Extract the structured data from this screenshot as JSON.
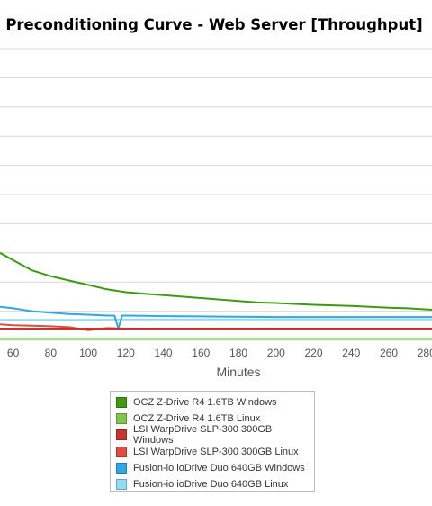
{
  "chart_data": {
    "type": "line",
    "title": "Preconditioning Curve - Web Server [Throughput]",
    "xlabel": "Minutes",
    "ylabel": "",
    "xlim": [
      53,
      283
    ],
    "ylim": [
      0,
      10
    ],
    "x_ticks": [
      "60",
      "80",
      "100",
      "120",
      "140",
      "160",
      "180",
      "200",
      "220",
      "240",
      "260",
      "280"
    ],
    "grid": true,
    "legend_position": "bottom",
    "series": [
      {
        "name": "OCZ Z-Drive R4 1.6TB Windows",
        "color": "#3d9b10",
        "x": [
          53,
          60,
          70,
          80,
          90,
          100,
          110,
          120,
          130,
          140,
          150,
          160,
          170,
          180,
          190,
          200,
          210,
          220,
          230,
          240,
          250,
          260,
          270,
          283
        ],
        "y": [
          3.0,
          2.75,
          2.4,
          2.2,
          2.05,
          1.9,
          1.75,
          1.65,
          1.6,
          1.55,
          1.5,
          1.45,
          1.4,
          1.35,
          1.3,
          1.28,
          1.25,
          1.22,
          1.2,
          1.18,
          1.15,
          1.12,
          1.1,
          1.05
        ]
      },
      {
        "name": "OCZ Z-Drive R4 1.6TB Linux",
        "color": "#7ec74a",
        "x": [
          53,
          283
        ],
        "y": [
          0.05,
          0.05
        ]
      },
      {
        "name": "LSI WarpDrive SLP-300 300GB Windows",
        "color": "#c8342a",
        "x": [
          53,
          283
        ],
        "y": [
          0.4,
          0.4
        ]
      },
      {
        "name": "LSI WarpDrive SLP-300 300GB Linux",
        "color": "#e24b3f",
        "x": [
          53,
          60,
          70,
          80,
          90,
          100,
          110,
          120,
          140,
          160,
          180,
          200,
          220,
          240,
          260,
          283
        ],
        "y": [
          0.55,
          0.52,
          0.5,
          0.48,
          0.45,
          0.35,
          0.42,
          0.4,
          0.4,
          0.4,
          0.4,
          0.4,
          0.4,
          0.4,
          0.4,
          0.4
        ]
      },
      {
        "name": "Fusion-io ioDrive Duo 640GB Windows",
        "color": "#2ea8e6",
        "x": [
          53,
          60,
          70,
          80,
          90,
          100,
          110,
          114,
          116,
          118,
          120,
          130,
          140,
          160,
          180,
          200,
          220,
          240,
          260,
          283
        ],
        "y": [
          1.15,
          1.1,
          1.0,
          0.95,
          0.9,
          0.88,
          0.85,
          0.85,
          0.4,
          0.85,
          0.85,
          0.84,
          0.83,
          0.82,
          0.81,
          0.8,
          0.8,
          0.8,
          0.8,
          0.8
        ]
      },
      {
        "name": "Fusion-io ioDrive Duo 640GB Linux",
        "color": "#8fdcf5",
        "x": [
          53,
          60,
          70,
          80,
          90,
          100,
          120,
          140,
          160,
          180,
          200,
          220,
          240,
          260,
          283
        ],
        "y": [
          0.7,
          0.7,
          0.7,
          0.7,
          0.7,
          0.7,
          0.72,
          0.72,
          0.72,
          0.72,
          0.72,
          0.72,
          0.72,
          0.72,
          0.72
        ]
      }
    ]
  }
}
